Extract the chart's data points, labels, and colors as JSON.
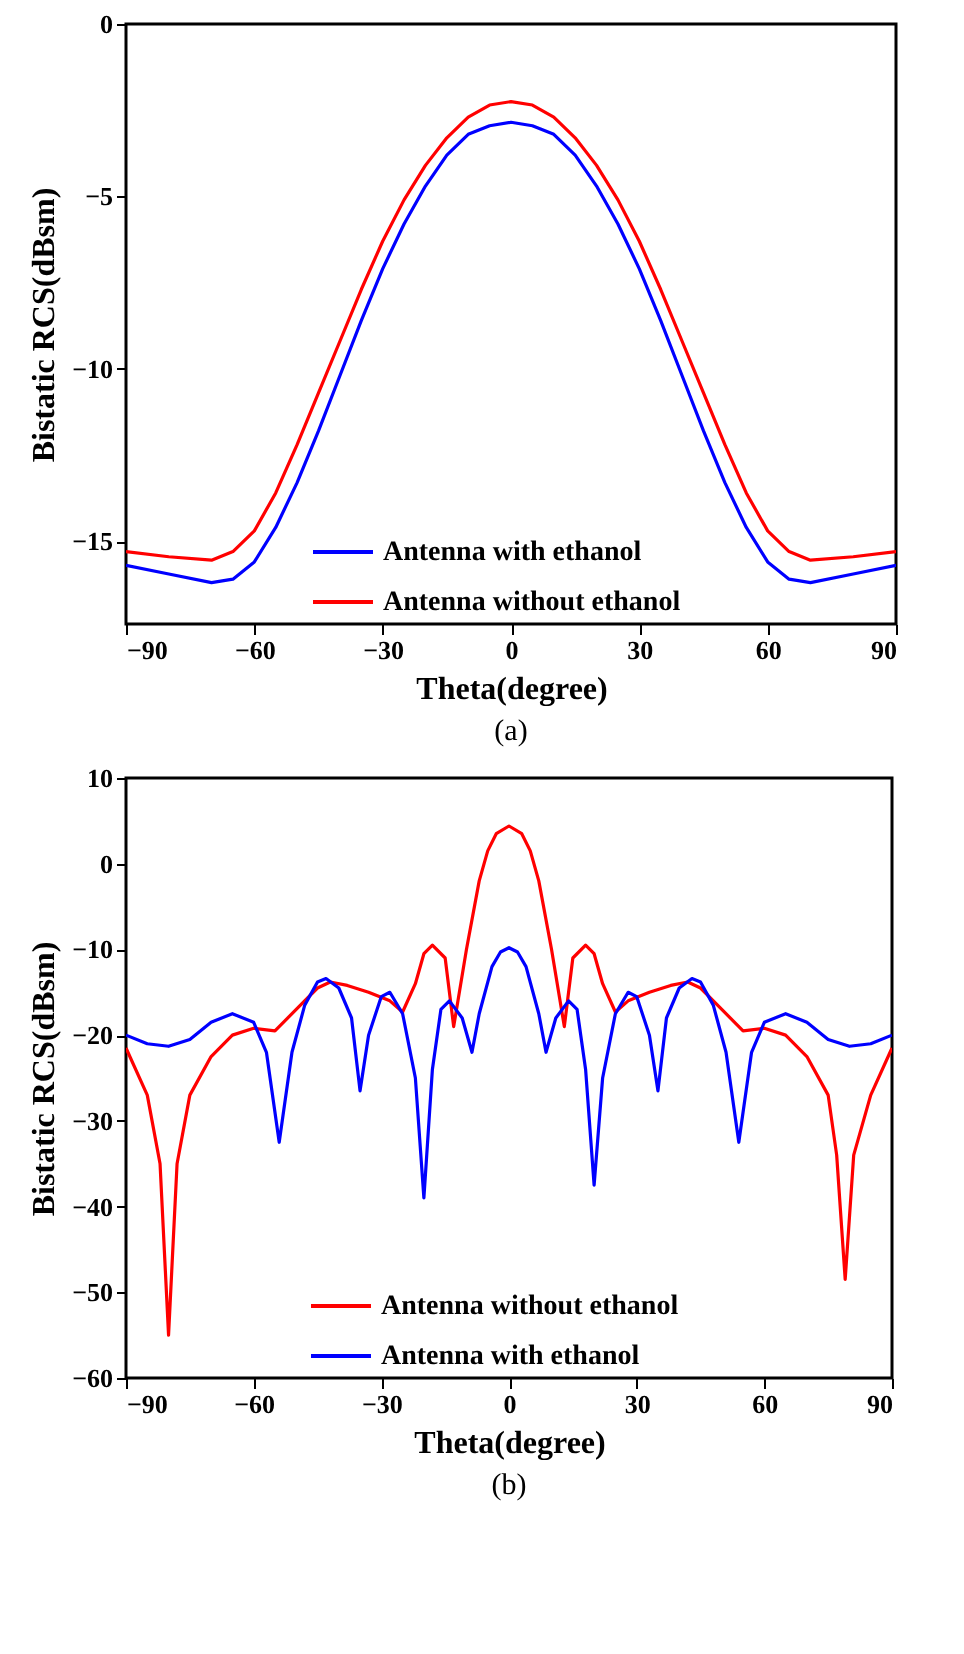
{
  "chart_data": [
    {
      "type": "line",
      "xlabel": "Theta(degree)",
      "ylabel": "Bistatic RCS(dBsm)",
      "annotations": [
        "(a)"
      ],
      "xlim": [
        -90,
        90
      ],
      "xticks": [
        -90,
        -60,
        -30,
        0,
        30,
        60,
        90
      ],
      "ylim": [
        -17.4,
        0
      ],
      "yticks": [
        -15,
        -10,
        -5,
        0
      ],
      "grid": false,
      "legend": "bottom",
      "marker": "none",
      "line_style": "solid",
      "x": [
        -90,
        -80,
        -70,
        -65,
        -60,
        -55,
        -50,
        -45,
        -40,
        -35,
        -30,
        -25,
        -20,
        -15,
        -10,
        -5,
        0,
        5,
        10,
        15,
        20,
        25,
        30,
        35,
        40,
        45,
        50,
        55,
        60,
        65,
        70,
        80,
        90
      ],
      "series": [
        {
          "name": "Antenna with ethanol",
          "color": "#0000ff",
          "values": [
            -15.7,
            -15.95,
            -16.2,
            -16.1,
            -15.6,
            -14.6,
            -13.3,
            -11.8,
            -10.2,
            -8.6,
            -7.1,
            -5.8,
            -4.7,
            -3.8,
            -3.2,
            -2.95,
            -2.85,
            -2.95,
            -3.2,
            -3.8,
            -4.7,
            -5.8,
            -7.1,
            -8.6,
            -10.2,
            -11.8,
            -13.3,
            -14.6,
            -15.6,
            -16.1,
            -16.2,
            -15.95,
            -15.7
          ]
        },
        {
          "name": "Antenna without ethanol",
          "color": "#ff0000",
          "values": [
            -15.3,
            -15.45,
            -15.55,
            -15.3,
            -14.7,
            -13.6,
            -12.2,
            -10.7,
            -9.2,
            -7.7,
            -6.3,
            -5.1,
            -4.1,
            -3.3,
            -2.7,
            -2.35,
            -2.25,
            -2.35,
            -2.7,
            -3.3,
            -4.1,
            -5.1,
            -6.3,
            -7.7,
            -9.2,
            -10.7,
            -12.2,
            -13.6,
            -14.7,
            -15.3,
            -15.55,
            -15.45,
            -15.3
          ]
        }
      ]
    },
    {
      "type": "line",
      "xlabel": "Theta(degree)",
      "ylabel": "Bistatic RCS(dBsm)",
      "annotations": [
        "(b)"
      ],
      "xlim": [
        -90,
        90
      ],
      "xticks": [
        -90,
        -60,
        -30,
        0,
        30,
        60,
        90
      ],
      "ylim": [
        -60,
        10
      ],
      "yticks": [
        -60,
        -50,
        -40,
        -30,
        -20,
        -10,
        0,
        10
      ],
      "grid": false,
      "legend": "bottom",
      "marker": "none",
      "line_style": "solid",
      "series": [
        {
          "name": "Antenna without ethanol",
          "color": "#ff0000",
          "x": [
            -90,
            -85,
            -82,
            -80,
            -78,
            -75,
            -70,
            -65,
            -60,
            -55,
            -50,
            -45,
            -42,
            -38,
            -33,
            -28,
            -25,
            -22,
            -20,
            -18,
            -15,
            -13,
            -10,
            -7,
            -5,
            -3,
            0,
            3,
            5,
            7,
            10,
            13,
            15,
            18,
            20,
            22,
            25,
            28,
            33,
            38,
            42,
            45,
            50,
            55,
            60,
            65,
            70,
            75,
            77,
            79,
            81,
            85,
            90
          ],
          "values": [
            -21.5,
            -27,
            -35,
            -55,
            -35,
            -27,
            -22.5,
            -20,
            -19.2,
            -19.5,
            -17,
            -14.5,
            -13.8,
            -14.2,
            -15,
            -16,
            -17.3,
            -14,
            -10.5,
            -9.5,
            -11,
            -19,
            -10,
            -2,
            1.5,
            3.5,
            4.4,
            3.5,
            1.5,
            -2,
            -10,
            -19,
            -11,
            -9.5,
            -10.5,
            -14,
            -17.3,
            -16,
            -15,
            -14.2,
            -13.8,
            -14.5,
            -17,
            -19.5,
            -19.2,
            -20,
            -22.5,
            -27,
            -34,
            -48.5,
            -34,
            -27,
            -21.5
          ]
        },
        {
          "name": "Antenna with ethanol",
          "color": "#0000ff",
          "x": [
            -90,
            -85,
            -80,
            -75,
            -70,
            -65,
            -60,
            -57,
            -54,
            -51,
            -48,
            -45,
            -43,
            -40,
            -37,
            -35,
            -33,
            -30,
            -28,
            -25,
            -22,
            -20,
            -18,
            -16,
            -14,
            -11,
            -8.7,
            -7,
            -4,
            -2,
            0,
            2,
            4,
            7,
            8.7,
            11,
            14,
            16,
            18,
            20,
            22,
            25,
            28,
            30,
            33,
            35,
            37,
            40,
            43,
            45,
            48,
            51,
            54,
            57,
            60,
            65,
            70,
            75,
            80,
            85,
            90
          ],
          "values": [
            -20,
            -21,
            -21.3,
            -20.5,
            -18.5,
            -17.5,
            -18.5,
            -22,
            -32.5,
            -22,
            -16.5,
            -13.8,
            -13.4,
            -14.5,
            -18,
            -26.5,
            -20,
            -15.5,
            -15,
            -17.5,
            -25,
            -39,
            -24,
            -17,
            -16,
            -18,
            -22,
            -17.5,
            -12,
            -10.3,
            -9.8,
            -10.3,
            -12,
            -17.5,
            -22,
            -18,
            -16,
            -17,
            -24,
            -37.5,
            -25,
            -17.5,
            -15,
            -15.5,
            -20,
            -26.5,
            -18,
            -14.5,
            -13.4,
            -13.8,
            -16.5,
            -22,
            -32.5,
            -22,
            -18.5,
            -17.5,
            -18.5,
            -20.5,
            -21.3,
            -21,
            -20
          ]
        }
      ]
    }
  ]
}
